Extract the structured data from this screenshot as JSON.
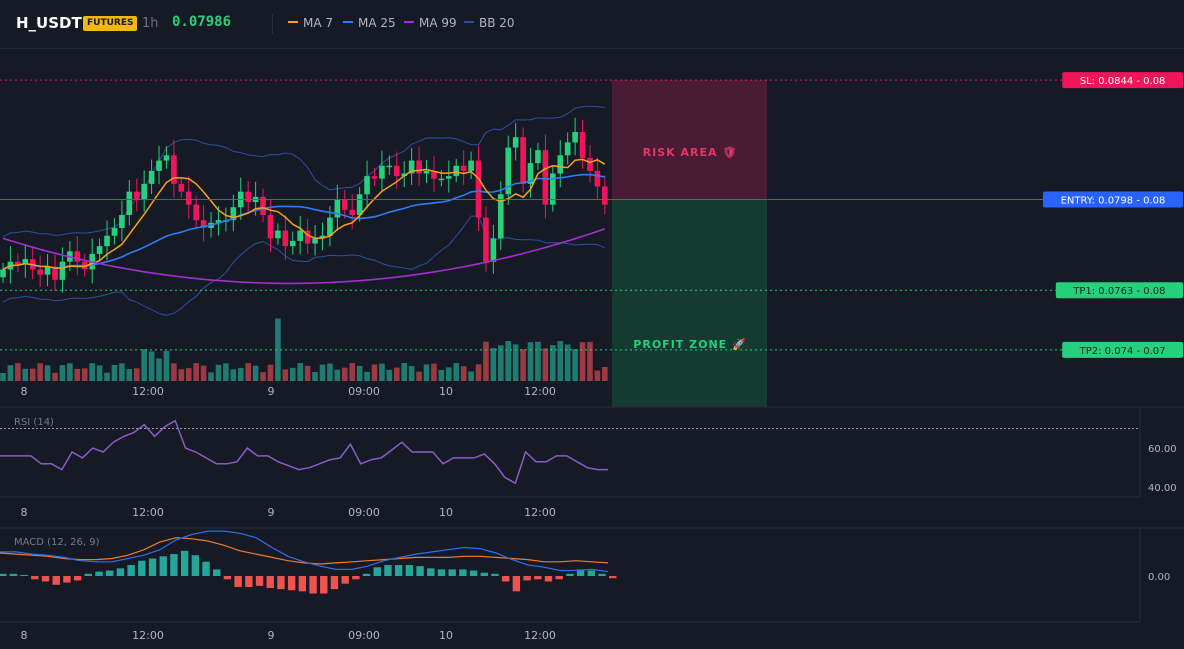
{
  "header": {
    "symbol": "H_USDT",
    "badge": "FUTURES",
    "timeframe": "1h",
    "last_price": "0.07986",
    "legend": [
      {
        "label": "MA 7",
        "color": "#f7a21b"
      },
      {
        "label": "MA 25",
        "color": "#2f7cf6"
      },
      {
        "label": "MA 99",
        "color": "#a52fd1"
      },
      {
        "label": "BB 20",
        "color": "#2c4fa3"
      }
    ]
  },
  "colors": {
    "bg": "#161a25",
    "up": "#26d07c",
    "down": "#f0155a",
    "vol_up": "#1f7a70",
    "vol_down": "#9c3a44"
  },
  "chart_data": [
    {
      "type": "candlestick",
      "x_ticks": [
        "8",
        "12:00",
        "9",
        "09:00",
        "10",
        "12:00"
      ],
      "price_labels": [
        {
          "text": "SL: 0.0844 - 0.08",
          "price": 0.0844,
          "color": "#f0155a",
          "line": "dotted"
        },
        {
          "text": "ENTRY: 0.0798 - 0.08",
          "price": 0.0798,
          "color": "#2962ff",
          "line": "solid"
        },
        {
          "text": "TP1: 0.0763 - 0.08",
          "price": 0.0763,
          "color": "#26d07c",
          "line": "dotted"
        },
        {
          "text": "TP2: 0.074 - 0.07",
          "price": 0.074,
          "color": "#26d07c",
          "line": "dotted"
        }
      ],
      "zones": {
        "risk_label": "RISK AREA 🛡",
        "profit_label": "PROFIT ZONE 🚀"
      },
      "ylim": [
        0.0728,
        0.0856
      ],
      "closes": [
        0.0771,
        0.0774,
        0.0773,
        0.0775,
        0.0771,
        0.0769,
        0.0772,
        0.0767,
        0.0774,
        0.0778,
        0.0774,
        0.0771,
        0.0777,
        0.078,
        0.0784,
        0.0787,
        0.0792,
        0.0801,
        0.0798,
        0.0804,
        0.0809,
        0.0813,
        0.0815,
        0.0804,
        0.0801,
        0.0796,
        0.079,
        0.0787,
        0.0789,
        0.079,
        0.079,
        0.0795,
        0.0801,
        0.0797,
        0.0799,
        0.0792,
        0.0783,
        0.0786,
        0.078,
        0.0782,
        0.0786,
        0.0781,
        0.0783,
        0.0784,
        0.0791,
        0.0798,
        0.0794,
        0.0792,
        0.08,
        0.0807,
        0.0806,
        0.0811,
        0.0811,
        0.0807,
        0.0808,
        0.0813,
        0.0808,
        0.0809,
        0.0806,
        0.0806,
        0.0807,
        0.0811,
        0.0809,
        0.0813,
        0.0791,
        0.0774,
        0.0783,
        0.08,
        0.0818,
        0.0822,
        0.0804,
        0.0812,
        0.0817,
        0.0796,
        0.0808,
        0.0815,
        0.082,
        0.0824,
        0.0814,
        0.0809,
        0.0803,
        0.0796
      ]
    },
    {
      "type": "line",
      "title": "RSI (14)",
      "y_ticks": [
        "60.00",
        "40.00"
      ],
      "x_ticks": [
        "8",
        "12:00",
        "9",
        "09:00",
        "10",
        "12:00"
      ],
      "ylim": [
        35,
        80
      ],
      "values": [
        56,
        56,
        56,
        56,
        52,
        52,
        49,
        58,
        55,
        60,
        58,
        63,
        66,
        68,
        72,
        66,
        71,
        74,
        60,
        58,
        55,
        52,
        52,
        53,
        60,
        56,
        56,
        53,
        51,
        49,
        50,
        52,
        54,
        55,
        62,
        52,
        54,
        55,
        59,
        63,
        58,
        58,
        58,
        52,
        55,
        55,
        55,
        57,
        52,
        45,
        42,
        58,
        53,
        53,
        56,
        56,
        53,
        50,
        49,
        49
      ]
    },
    {
      "type": "bar+line",
      "title": "MACD (12, 26, 9)",
      "y_ticks": [
        "0.00"
      ],
      "x_ticks": [
        "8",
        "12:00",
        "9",
        "09:00",
        "10",
        "12:00"
      ],
      "ylim": [
        -4.2,
        4.2
      ],
      "hist": [
        0.2,
        0.2,
        0.1,
        -0.3,
        -0.5,
        -0.8,
        -0.6,
        -0.4,
        0.2,
        0.4,
        0.5,
        0.7,
        1.0,
        1.4,
        1.6,
        1.8,
        2.0,
        2.3,
        1.9,
        1.3,
        0.6,
        -0.3,
        -1.0,
        -1.0,
        -0.9,
        -1.1,
        -1.2,
        -1.3,
        -1.4,
        -1.6,
        -1.6,
        -1.2,
        -0.7,
        -0.3,
        0.2,
        0.8,
        1.0,
        1.0,
        1.0,
        0.9,
        0.7,
        0.6,
        0.6,
        0.6,
        0.5,
        0.3,
        0.2,
        -0.5,
        -1.4,
        -0.4,
        -0.3,
        -0.5,
        -0.3,
        0.2,
        0.6,
        0.5,
        0.2,
        -0.2
      ],
      "macd": [
        2.2,
        2.2,
        2.0,
        1.9,
        1.7,
        1.4,
        1.3,
        1.3,
        1.6,
        1.9,
        2.4,
        3.3,
        3.8,
        4.1,
        4.1,
        3.9,
        3.5,
        2.6,
        1.8,
        1.3,
        0.9,
        0.6,
        0.6,
        0.9,
        1.4,
        1.7,
        2.0,
        2.2,
        2.4,
        2.6,
        2.5,
        2.1,
        1.5,
        1.0,
        0.8,
        0.5,
        0.5,
        0.6,
        0.4
      ],
      "signal": [
        2.1,
        2.0,
        1.9,
        1.8,
        1.6,
        1.5,
        1.5,
        1.6,
        1.9,
        2.4,
        3.1,
        3.5,
        3.4,
        3.2,
        2.8,
        2.3,
        2.0,
        1.7,
        1.4,
        1.2,
        1.1,
        1.2,
        1.3,
        1.4,
        1.5,
        1.6,
        1.7,
        1.7,
        1.7,
        1.8,
        1.8,
        1.7,
        1.6,
        1.5,
        1.3,
        1.3,
        1.4,
        1.3,
        1.2
      ]
    }
  ]
}
